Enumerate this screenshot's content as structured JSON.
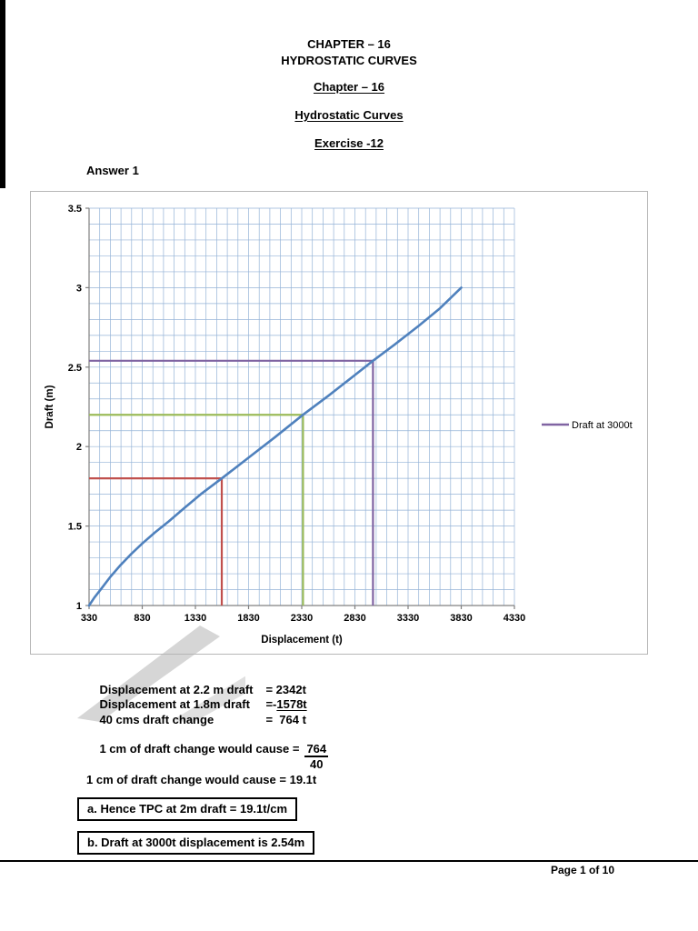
{
  "page": {
    "header_line1": "CHAPTER – 16",
    "header_line2": "HYDROSTATIC CURVES",
    "heading_chapter": "Chapter – 16",
    "heading_topic": "Hydrostatic Curves",
    "heading_exercise": "Exercise -12",
    "answer_label": "Answer 1",
    "footer": "Page 1 of 10"
  },
  "chart_data": {
    "type": "line",
    "title": "",
    "xlabel": "Displacement (t)",
    "ylabel": "Draft (m)",
    "xlim": [
      330,
      4330
    ],
    "ylim": [
      1,
      3.5
    ],
    "x_ticks": [
      330,
      830,
      1330,
      1830,
      2330,
      2830,
      3330,
      3830,
      4330
    ],
    "y_ticks": [
      1,
      1.5,
      2,
      2.5,
      3,
      3.5
    ],
    "x_minor_step": 100,
    "y_minor_step": 0.1,
    "grid": true,
    "legend_position": "right",
    "colors": {
      "grid": "#95B3D7",
      "axis": "#808080"
    },
    "legend": {
      "items": [
        {
          "label": "Draft at 3000t",
          "color": "#8064A2"
        }
      ]
    },
    "series": [
      {
        "name": "draft-vs-displacement-curve",
        "color": "#4F81BD",
        "points": [
          [
            330,
            1.0
          ],
          [
            380,
            1.05
          ],
          [
            450,
            1.11
          ],
          [
            530,
            1.18
          ],
          [
            620,
            1.25
          ],
          [
            720,
            1.32
          ],
          [
            830,
            1.39
          ],
          [
            950,
            1.46
          ],
          [
            1080,
            1.53
          ],
          [
            1220,
            1.61
          ],
          [
            1380,
            1.7
          ],
          [
            1578,
            1.8
          ],
          [
            1830,
            1.93
          ],
          [
            2080,
            2.06
          ],
          [
            2342,
            2.2
          ],
          [
            2580,
            2.32
          ],
          [
            2830,
            2.45
          ],
          [
            3000,
            2.54
          ],
          [
            3200,
            2.64
          ],
          [
            3430,
            2.76
          ],
          [
            3630,
            2.87
          ],
          [
            3830,
            3.0
          ]
        ]
      }
    ],
    "annotations": [
      {
        "name": "marker-draft-1-8m",
        "color": "#C0504D",
        "h_y": 1.8,
        "v_x": 1578
      },
      {
        "name": "marker-draft-2-2m",
        "color": "#9BBB59",
        "h_y": 2.2,
        "v_x": 2342
      },
      {
        "name": "marker-draft-at-3000t",
        "color": "#8064A2",
        "h_y": 2.54,
        "v_x": 3000
      }
    ]
  },
  "calc": {
    "row1_label": "Displacement at 2.2 m draft",
    "row1_value": "= 2342t",
    "row2_label": "Displacement at 1.8m draft",
    "row2_prefix": "=-",
    "row2_underlined": "1578t",
    "row3_label": "40 cms draft change",
    "row3_value": "=  764 t",
    "frac_label": "1 cm of draft change would cause =",
    "frac_num": "764",
    "frac_den": "40",
    "result_line": "1 cm of draft change would cause = 19.1t",
    "box_a": "a. Hence TPC at 2m draft = 19.1t/cm",
    "box_b": "b. Draft at 3000t displacement is 2.54m"
  }
}
